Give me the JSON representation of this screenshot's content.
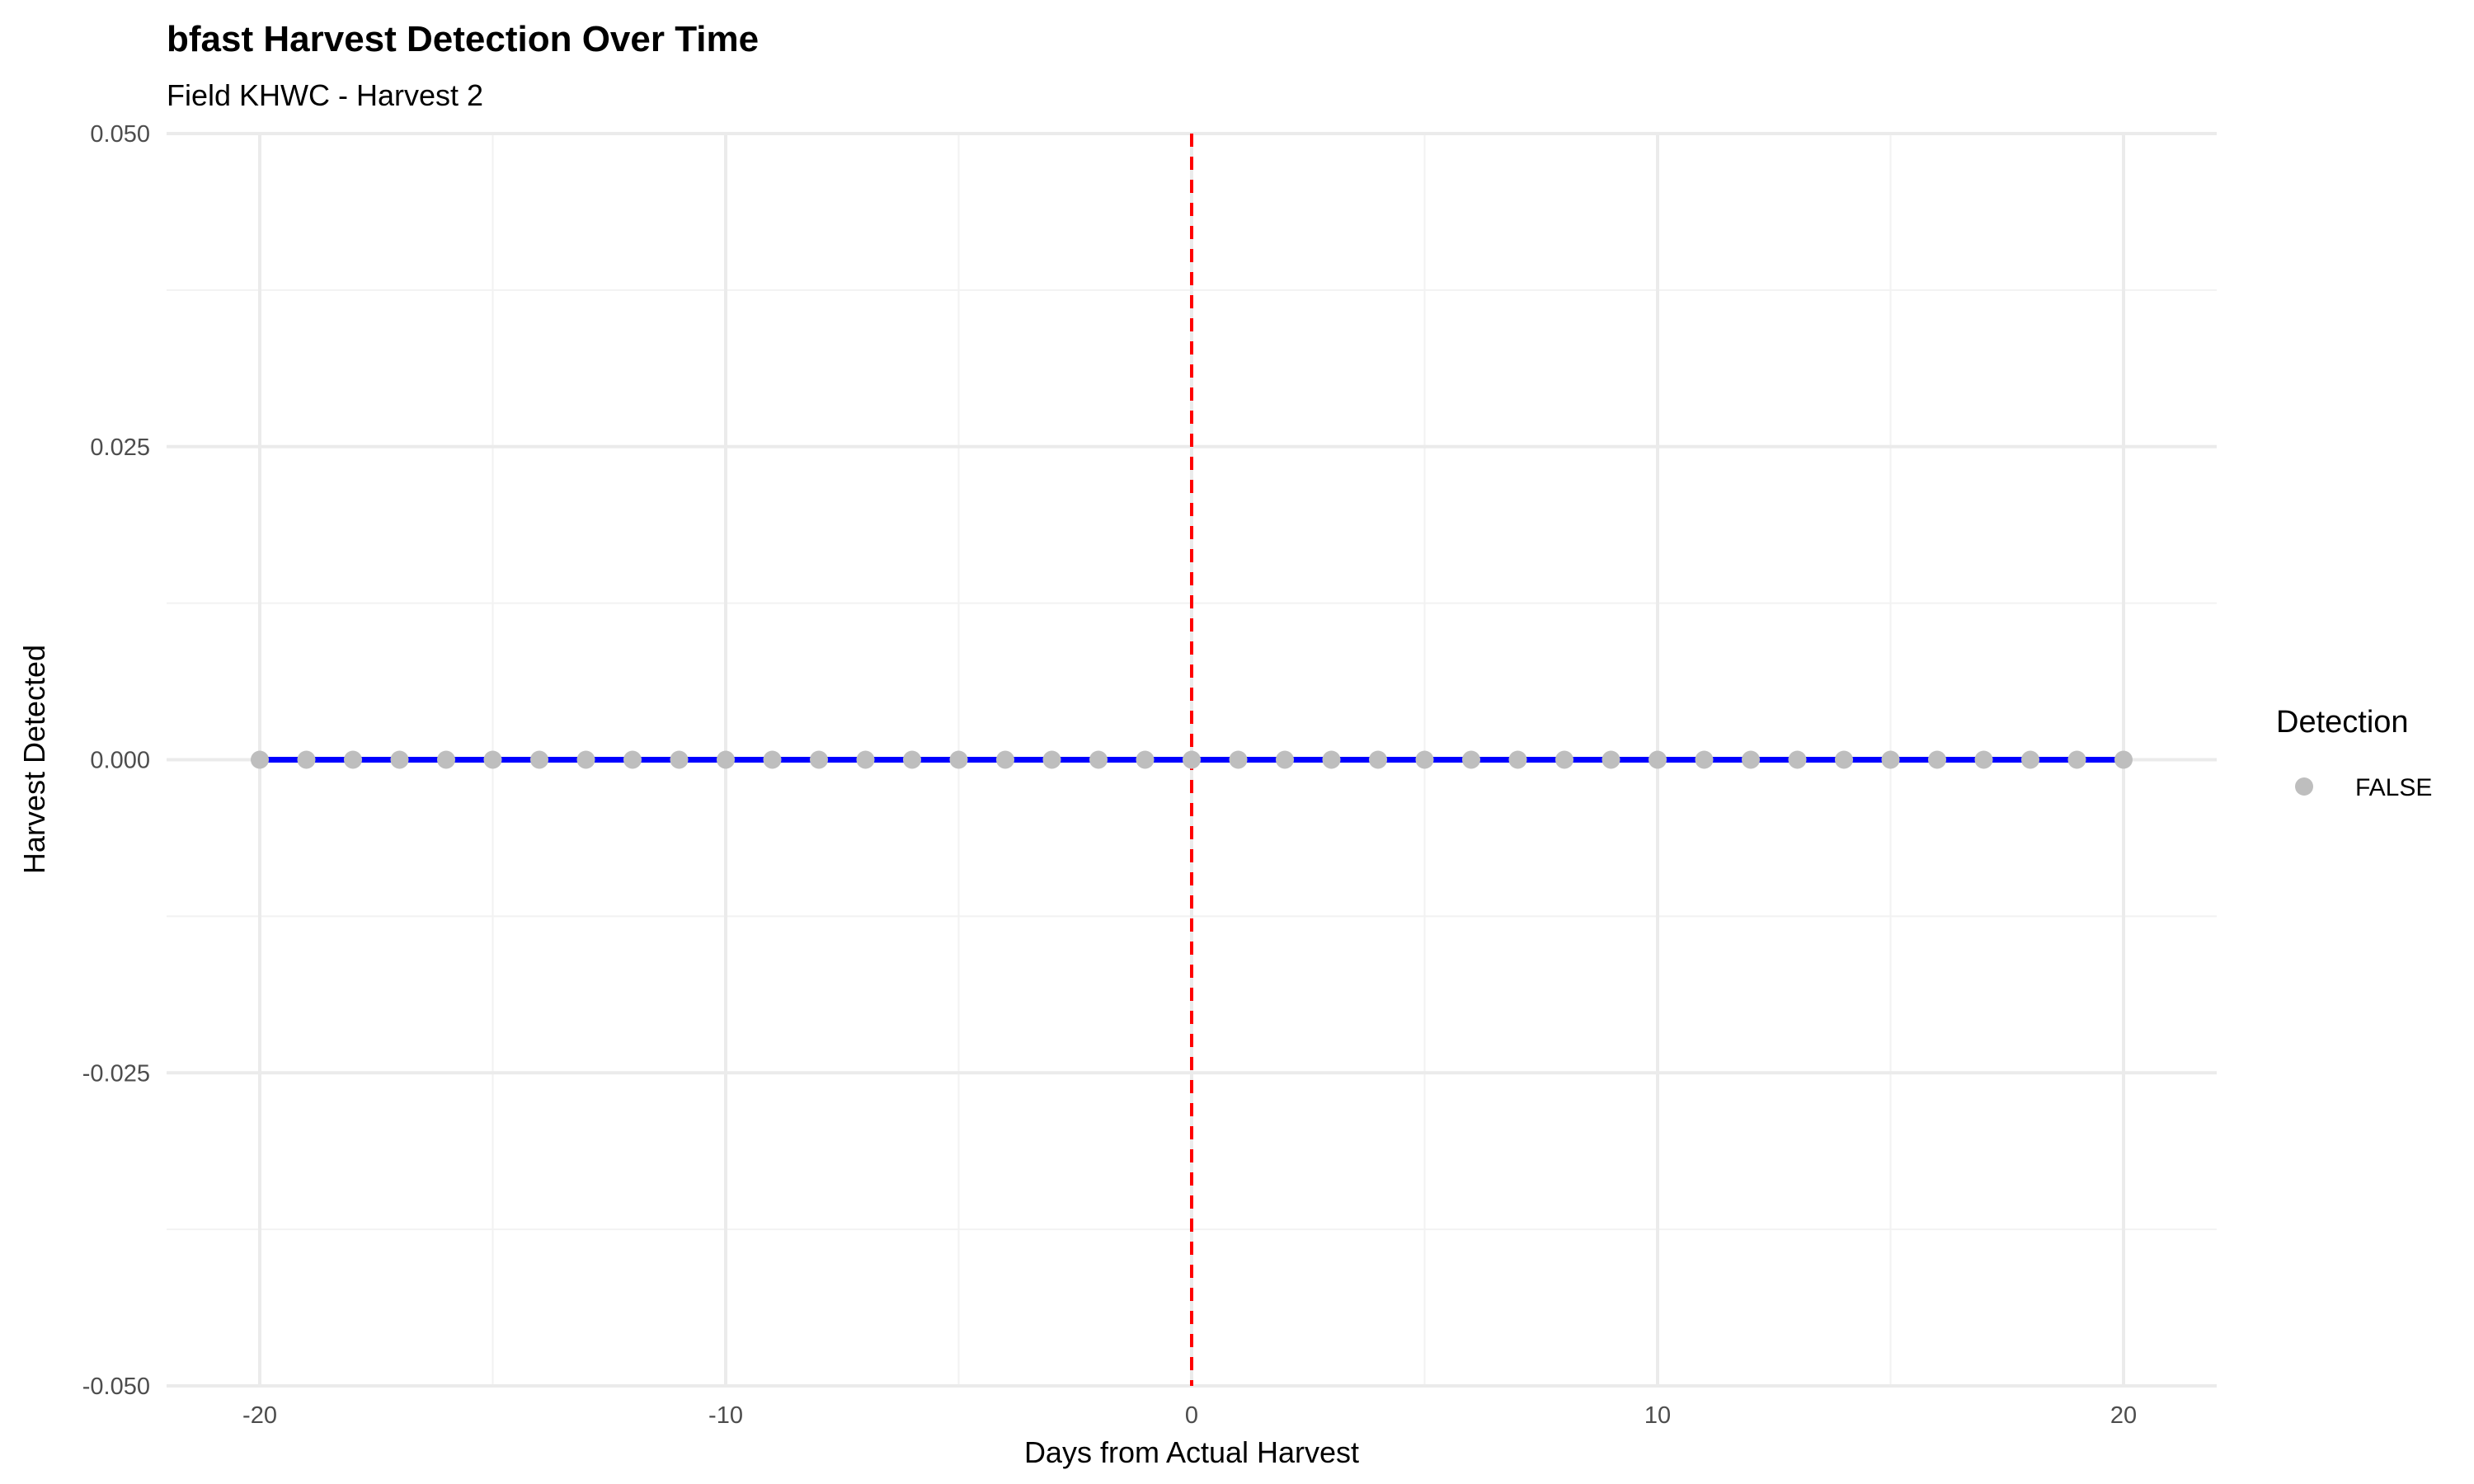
{
  "chart_data": {
    "type": "line",
    "title": "bfast Harvest Detection Over Time",
    "subtitle": "Field KHWC - Harvest 2",
    "xlabel": "Days from Actual Harvest",
    "ylabel": "Harvest Detected",
    "xlim": [
      -22,
      22
    ],
    "ylim": [
      -0.05,
      0.05
    ],
    "x_ticks": [
      -20,
      -10,
      0,
      10,
      20
    ],
    "x_tick_labels": [
      "-20",
      "-10",
      "0",
      "10",
      "20"
    ],
    "y_ticks": [
      -0.05,
      -0.025,
      0,
      0.025,
      0.05
    ],
    "y_tick_labels": [
      "-0.050",
      "-0.025",
      "0.000",
      "0.025",
      "0.050"
    ],
    "grid": true,
    "x": [
      -20,
      -19,
      -18,
      -17,
      -16,
      -15,
      -14,
      -13,
      -12,
      -11,
      -10,
      -9,
      -8,
      -7,
      -6,
      -5,
      -4,
      -3,
      -2,
      -1,
      0,
      1,
      2,
      3,
      4,
      5,
      6,
      7,
      8,
      9,
      10,
      11,
      12,
      13,
      14,
      15,
      16,
      17,
      18,
      19,
      20
    ],
    "y": [
      0,
      0,
      0,
      0,
      0,
      0,
      0,
      0,
      0,
      0,
      0,
      0,
      0,
      0,
      0,
      0,
      0,
      0,
      0,
      0,
      0,
      0,
      0,
      0,
      0,
      0,
      0,
      0,
      0,
      0,
      0,
      0,
      0,
      0,
      0,
      0,
      0,
      0,
      0,
      0,
      0
    ],
    "line_color": "#0000ff",
    "point_color": "#bebebe",
    "reference_line": {
      "x": 0,
      "color": "#ff0000",
      "style": "dashed"
    },
    "legend": {
      "title": "Detection",
      "placement": "right",
      "entries": [
        {
          "label": "FALSE",
          "color": "#bebebe"
        }
      ]
    }
  }
}
